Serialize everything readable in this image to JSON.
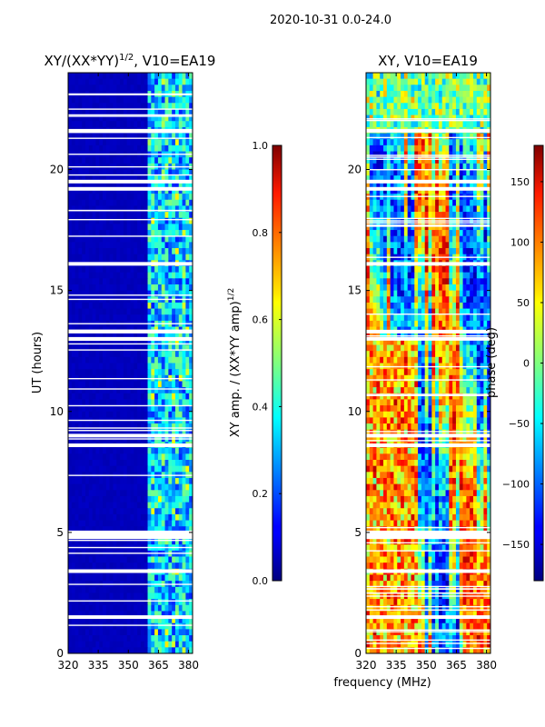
{
  "suptitle": "2020-10-31 0.0-24.0",
  "chart_data": [
    {
      "type": "heatmap",
      "title": "XY/(XX*YY)",
      "title_superscript": "1/2",
      "title_suffix": ", V10=EA19",
      "xlabel": "",
      "ylabel": "UT (hours)",
      "xlim": [
        320,
        382
      ],
      "ylim": [
        0,
        24
      ],
      "xticks": [
        320,
        335,
        350,
        365,
        380
      ],
      "yticks": [
        0,
        5,
        10,
        15,
        20
      ],
      "colorbar": {
        "label": "XY amp. / (XX*YY amp)",
        "label_superscript": "1/2",
        "range": [
          0.0,
          1.0
        ],
        "ticks": [
          "0.0",
          "0.2",
          "0.4",
          "0.6",
          "0.8",
          "1.0"
        ],
        "tick_values": [
          0.0,
          0.2,
          0.4,
          0.6,
          0.8,
          1.0
        ],
        "colormap": "jet"
      },
      "flagged_hours": [
        19.2,
        19.5,
        13.0,
        13.3,
        9.0,
        8.6,
        5.0,
        4.8,
        4.9,
        21.6,
        16.1,
        3.4,
        1.5
      ],
      "active_band_mhz": [
        359,
        383
      ],
      "background_value": 0.05
    },
    {
      "type": "heatmap",
      "title": "XY, V10=EA19",
      "xlabel": "frequency (MHz)",
      "ylabel": "",
      "xlim": [
        320,
        382
      ],
      "ylim": [
        0,
        24
      ],
      "xticks": [
        320,
        335,
        350,
        365,
        380
      ],
      "yticks": [
        0,
        5,
        10,
        15,
        20
      ],
      "colorbar": {
        "label": "phase (deg)",
        "range": [
          -180,
          180
        ],
        "ticks": [
          "−150",
          "−100",
          "−50",
          "0",
          "50",
          "100",
          "150"
        ],
        "tick_values": [
          -150,
          -100,
          -50,
          0,
          50,
          100,
          150
        ],
        "colormap": "jet"
      },
      "flagged_hours": [
        19.2,
        19.5,
        13.0,
        13.3,
        9.0,
        8.6,
        5.0,
        4.8,
        4.9,
        21.6,
        16.1,
        3.4,
        1.5
      ]
    }
  ]
}
